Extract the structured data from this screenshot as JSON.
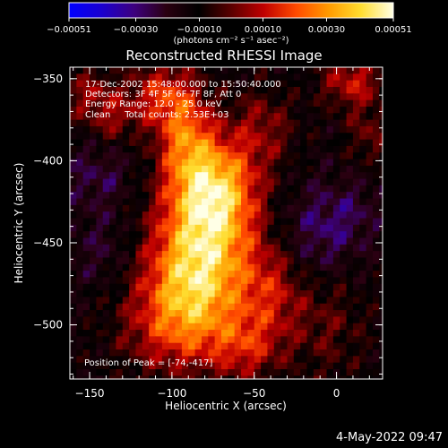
{
  "chart_data": {
    "type": "heatmap",
    "title": "Reconstructed RHESSI Image",
    "xlabel": "Heliocentric X (arcsec)",
    "ylabel": "Heliocentric Y (arcsec)",
    "xlim": [
      -162,
      28
    ],
    "ylim": [
      -533,
      -343
    ],
    "x_ticks": [
      -150,
      -100,
      -50,
      0
    ],
    "y_ticks": [
      -350,
      -400,
      -450,
      -500
    ],
    "x_tick_labels": [
      "−150",
      "−100",
      "−50",
      "0"
    ],
    "y_tick_labels": [
      "−350",
      "−400",
      "−450",
      "−500"
    ],
    "annotations": [
      "17-Dec-2002 15:48:00.000 to 15:50:40.000",
      "Detectors: 3F 4F 5F 6F 7F 8F, Att 0",
      "Energy Range: 12.0 - 25.0 keV",
      "Clean     Total counts: 2.53E+03"
    ],
    "peak_label": "Position of Peak = [-74,-417]",
    "peak": [
      -74,
      -417
    ],
    "colorbar": {
      "min": -0.00051,
      "max": 0.00051,
      "tick_values": [
        -0.00051,
        -0.0003,
        -0.0001,
        0.0001,
        0.0003,
        0.00051
      ],
      "tick_labels": [
        "−0.00051",
        "−0.00030",
        "−0.00010",
        "0.00010",
        "0.00030",
        "0.00051"
      ],
      "unit_label": "(photons cm⁻² s⁻¹ asec⁻²)",
      "colormap": [
        "#0000ff",
        "#1a00d0",
        "#3d007f",
        "#2a0010",
        "#000000",
        "#5a0000",
        "#c00000",
        "#ff4a00",
        "#ff9a00",
        "#ffdd30",
        "#ffffe6"
      ]
    },
    "grid": false,
    "legend": "none"
  },
  "footer": {
    "date_stamp": "4-May-2022 09:47"
  },
  "colors": {
    "background": "#000000",
    "foreground": "#ffffff"
  }
}
